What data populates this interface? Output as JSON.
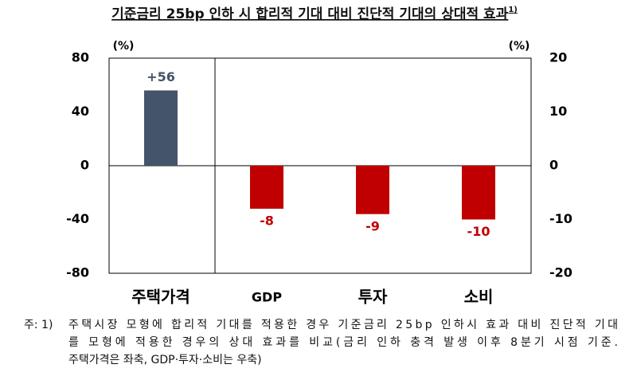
{
  "chart_data": {
    "type": "bar",
    "title": "기준금리 25bp 인하 시 합리적 기대 대비 진단적 기대의 상대적 효과",
    "title_note": "1)",
    "categories": [
      "주택가격",
      "GDP",
      "투자",
      "소비"
    ],
    "series": [
      {
        "color": "#44546a",
        "values": [
          56,
          null,
          null,
          null
        ],
        "value_labels": [
          "+56",
          null,
          null,
          null
        ]
      },
      {
        "color": "#c00000",
        "axis": "y2",
        "values": [
          null,
          -8,
          -9,
          -10
        ]
      }
    ],
    "y_unit": "(%)",
    "y2_unit": "(%)",
    "ylim": [
      -80,
      80
    ],
    "yticks": [
      -80,
      -40,
      0,
      40,
      80
    ],
    "y2lim": [
      -20,
      20
    ],
    "y2ticks": [
      -20,
      -10,
      0,
      10,
      20
    ],
    "footnote": {
      "marker": "주: 1)",
      "lines": [
        "주택시장 모형에 합리적 기대를 적용한 경우 기준금리 25bp 인하시 효과 대비 진단적 기대",
        "를 모형에 적용한 경우의 상대 효과를 비교(금리 인하 충격 발생 이후 8분기 시점 기준.",
        "주택가격은 좌축, GDP·투자·소비는 우축)"
      ]
    }
  }
}
